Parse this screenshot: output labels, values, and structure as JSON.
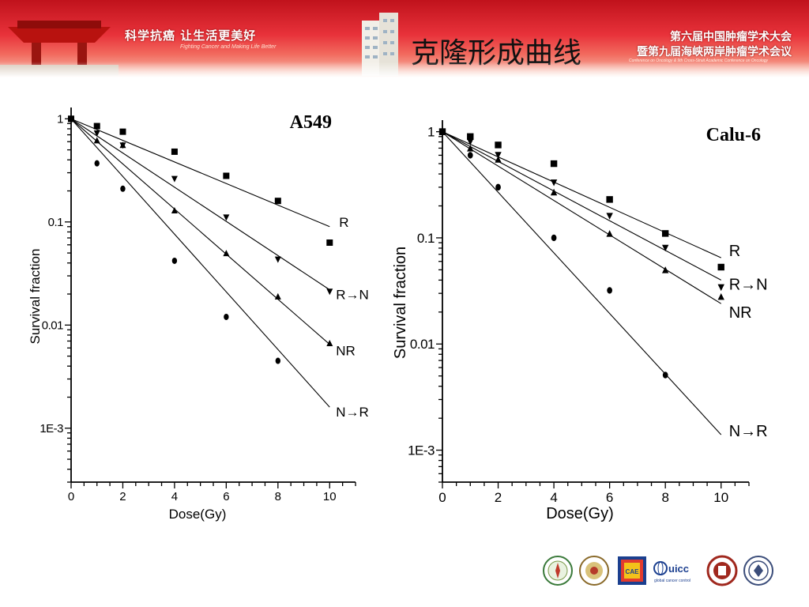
{
  "header": {
    "slogan": "科学抗癌 让生活更美好",
    "slogan_en": "Fighting Cancer and Making Life Better",
    "title": "克隆形成曲线",
    "conference_line1": "第六届中国肿瘤学术大会",
    "conference_line2": "暨第九届海峡两岸肿瘤学术会议",
    "conference_en": "Conference on Oncology & 9th Cross-Strait Academic Conference on Oncology"
  },
  "footer": {
    "uicc_text": "uicc",
    "uicc_sub": "global cancer control",
    "cae_text": "CAE"
  },
  "chart_data": [
    {
      "type": "scatter",
      "title": "A549",
      "xlabel": "Dose(Gy)",
      "ylabel": "Survival fraction",
      "xlim": [
        0,
        11
      ],
      "ylim": [
        0.0003,
        1.2
      ],
      "yscale": "log",
      "xticks": [
        0,
        2,
        4,
        6,
        8,
        10
      ],
      "yticks": [
        {
          "v": 1,
          "label": "1"
        },
        {
          "v": 0.1,
          "label": "0.1"
        },
        {
          "v": 0.01,
          "label": "0.01"
        },
        {
          "v": 0.001,
          "label": "1E-3"
        }
      ],
      "series": [
        {
          "name": "R",
          "marker": "square",
          "x": [
            0,
            1,
            2,
            4,
            6,
            8,
            10
          ],
          "y": [
            1.0,
            0.85,
            0.75,
            0.48,
            0.28,
            0.16,
            0.063
          ],
          "fit_end": 0.09
        },
        {
          "name": "R→N",
          "marker": "triangle-down",
          "x": [
            0,
            1,
            2,
            4,
            6,
            8,
            10
          ],
          "y": [
            1.0,
            0.72,
            0.55,
            0.26,
            0.11,
            0.043,
            0.021
          ],
          "fit_end": 0.022
        },
        {
          "name": "NR",
          "marker": "triangle-up",
          "x": [
            0,
            1,
            2,
            4,
            6,
            8,
            10
          ],
          "y": [
            1.0,
            0.62,
            0.56,
            0.13,
            0.05,
            0.019,
            0.0067
          ],
          "fit_end": 0.0065
        },
        {
          "name": "N→R",
          "marker": "diamond",
          "x": [
            0,
            1,
            2,
            4,
            6,
            8
          ],
          "y": [
            1.0,
            0.37,
            0.21,
            0.042,
            0.012,
            0.0045
          ],
          "fit_end": 0.0016
        }
      ]
    },
    {
      "type": "scatter",
      "title": "Calu-6",
      "xlabel": "Dose(Gy)",
      "ylabel": "Survival fraction",
      "xlim": [
        0,
        11
      ],
      "ylim": [
        0.0005,
        1.2
      ],
      "yscale": "log",
      "xticks": [
        0,
        2,
        4,
        6,
        8,
        10
      ],
      "yticks": [
        {
          "v": 1,
          "label": "1"
        },
        {
          "v": 0.1,
          "label": "0.1"
        },
        {
          "v": 0.01,
          "label": "0.01"
        },
        {
          "v": 0.001,
          "label": "1E-3"
        }
      ],
      "series": [
        {
          "name": "R",
          "marker": "square",
          "x": [
            0,
            1,
            2,
            4,
            6,
            8,
            10
          ],
          "y": [
            1.0,
            0.9,
            0.75,
            0.5,
            0.23,
            0.11,
            0.053
          ],
          "fit_end": 0.065
        },
        {
          "name": "R→N",
          "marker": "triangle-down",
          "x": [
            0,
            1,
            2,
            4,
            6,
            8,
            10
          ],
          "y": [
            1.0,
            0.8,
            0.6,
            0.33,
            0.16,
            0.08,
            0.034
          ],
          "fit_end": 0.04
        },
        {
          "name": "NR",
          "marker": "triangle-up",
          "x": [
            0,
            1,
            2,
            4,
            6,
            8,
            10
          ],
          "y": [
            1.0,
            0.7,
            0.55,
            0.27,
            0.11,
            0.05,
            0.028
          ],
          "fit_end": 0.024
        },
        {
          "name": "N→R",
          "marker": "diamond",
          "x": [
            0,
            1,
            2,
            4,
            6,
            8
          ],
          "y": [
            1.0,
            0.6,
            0.3,
            0.1,
            0.032,
            0.0051
          ],
          "fit_end": 0.0014
        }
      ]
    }
  ]
}
